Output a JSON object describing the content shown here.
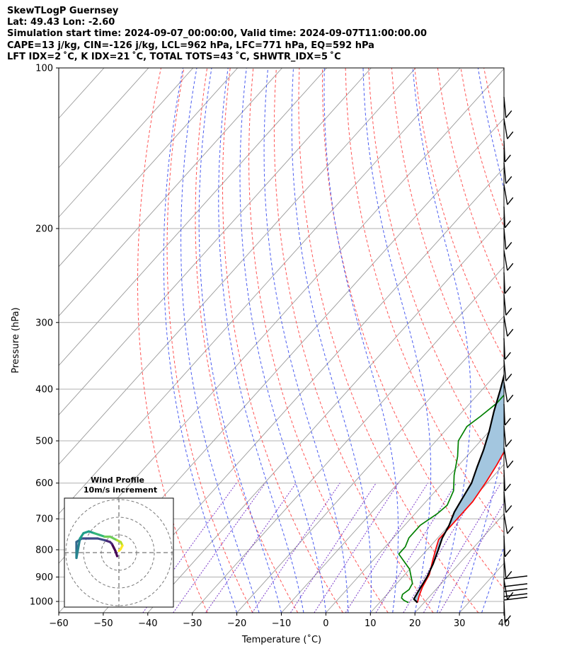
{
  "header": {
    "line1": "SkewTLogP Guernsey",
    "line2": "Lat: 49.43   Lon: -2.60",
    "line3": "Simulation start time: 2024-09-07_00:00:00, Valid time: 2024-09-07T11:00:00.00",
    "line4": "CAPE=13 j/kg, CIN=-126 j/kg, LCL=962 hPa, LFC=771 hPa, EQ=592 hPa",
    "line5": "LFT IDX=2 ˚C, K IDX=21 ˚C, TOTAL TOTS=43 ˚C, SHWTR_IDX=5 ˚C"
  },
  "colors": {
    "temperature": "#ff0000",
    "dewpoint": "#008000",
    "parcel": "#000000",
    "cape_fill": "#a3c6df",
    "dry_adiabats": "#ff5555",
    "moist_adiabats": "#4a5cf0",
    "mixing_ratio": "#7a38c8",
    "isotherms": "#9a9a9a",
    "grid": "#b0b0b0"
  },
  "chart_data": {
    "type": "line",
    "xlabel": "Temperature (˚C)",
    "ylabel": "Pressure (hPa)",
    "xlim": [
      -60,
      40
    ],
    "ylim": [
      1050,
      100
    ],
    "y_scale": "log",
    "x_ticks": [
      "−60",
      "−50",
      "−40",
      "−30",
      "−20",
      "−10",
      "0",
      "10",
      "20",
      "30",
      "40"
    ],
    "y_ticks": [
      100,
      200,
      300,
      400,
      500,
      600,
      700,
      800,
      900,
      1000
    ],
    "grid": true,
    "series": [
      {
        "key": "temperature",
        "points": [
          [
            18.5,
            1005
          ],
          [
            17.5,
            975
          ],
          [
            16.5,
            940
          ],
          [
            16,
            915
          ],
          [
            15.5,
            890
          ],
          [
            13.5,
            840
          ],
          [
            11.5,
            790
          ],
          [
            10.5,
            765
          ],
          [
            10.5,
            740
          ],
          [
            10.5,
            710
          ],
          [
            10.5,
            650
          ],
          [
            9.5,
            595
          ],
          [
            8.5,
            555
          ],
          [
            7,
            510
          ],
          [
            4.5,
            460
          ],
          [
            2,
            420
          ],
          [
            -0.5,
            380
          ],
          [
            -3,
            345
          ],
          [
            -5,
            315
          ],
          [
            -9,
            280
          ],
          [
            -9.5,
            270
          ],
          [
            -7,
            255
          ],
          [
            -4.5,
            240
          ],
          [
            -2,
            225
          ],
          [
            0,
            210
          ],
          [
            2.5,
            195
          ],
          [
            4.5,
            180
          ],
          [
            6.5,
            165
          ],
          [
            7.5,
            155
          ],
          [
            7.5,
            145
          ],
          [
            8.2,
            135
          ],
          [
            9,
            128
          ],
          [
            11,
            121
          ],
          [
            14.5,
            114
          ],
          [
            16,
            109
          ],
          [
            17.5,
            104
          ],
          [
            18,
            100
          ]
        ]
      },
      {
        "key": "dewpoint",
        "points": [
          [
            16.5,
            1005
          ],
          [
            15,
            995
          ],
          [
            14,
            985
          ],
          [
            13.5,
            970
          ],
          [
            14,
            950
          ],
          [
            13.5,
            925
          ],
          [
            10,
            870
          ],
          [
            4.5,
            815
          ],
          [
            4.5,
            790
          ],
          [
            3.5,
            760
          ],
          [
            3.5,
            720
          ],
          [
            5,
            685
          ],
          [
            5.5,
            660
          ],
          [
            4,
            620
          ],
          [
            1,
            580
          ],
          [
            -2,
            535
          ],
          [
            -5,
            500
          ],
          [
            -6,
            470
          ],
          [
            -5,
            450
          ],
          [
            -4,
            425
          ],
          [
            -4,
            395
          ],
          [
            -4.5,
            370
          ],
          [
            -5.5,
            340
          ],
          [
            -7,
            315
          ],
          [
            -9,
            290
          ],
          [
            -10,
            275
          ],
          [
            -10.5,
            258
          ],
          [
            -13,
            245
          ],
          [
            -16,
            238
          ],
          [
            -20,
            225
          ],
          [
            -23,
            215
          ],
          [
            -25.5,
            208
          ],
          [
            -25,
            195
          ],
          [
            -24,
            185
          ],
          [
            -24,
            175
          ],
          [
            -23.5,
            165
          ],
          [
            -20,
            152
          ],
          [
            -16,
            140
          ],
          [
            -12,
            128
          ],
          [
            -9,
            118
          ],
          [
            -7,
            108
          ],
          [
            -6,
            100
          ]
        ]
      },
      {
        "key": "parcel",
        "points": [
          [
            18.5,
            1005
          ],
          [
            17,
            990
          ],
          [
            16.5,
            962
          ],
          [
            15.5,
            900
          ],
          [
            14.2,
            850
          ],
          [
            12.5,
            800
          ],
          [
            11,
            760
          ],
          [
            10,
            720
          ],
          [
            8.5,
            680
          ],
          [
            7.5,
            640
          ],
          [
            6.5,
            600
          ],
          [
            4.5,
            560
          ],
          [
            2.5,
            520
          ],
          [
            0,
            480
          ],
          [
            -3,
            440
          ],
          [
            -6,
            400
          ],
          [
            -9.5,
            360
          ],
          [
            -13,
            320
          ],
          [
            -17,
            290
          ],
          [
            -19,
            265
          ],
          [
            -22,
            240
          ],
          [
            -25,
            218
          ],
          [
            -28,
            200
          ],
          [
            -32,
            180
          ],
          [
            -35,
            165
          ],
          [
            -39,
            148
          ],
          [
            -43,
            132
          ],
          [
            -46,
            118
          ],
          [
            -49,
            108
          ],
          [
            -50,
            100
          ]
        ]
      }
    ],
    "wind_barbs_count": 24,
    "inset": {
      "title": "Wind Profile",
      "subtitle": "10m/s increment",
      "type": "hodograph",
      "points": [
        [
          -1,
          -2
        ],
        [
          -2,
          1
        ],
        [
          -3,
          3
        ],
        [
          -4,
          5
        ],
        [
          -5,
          6
        ],
        [
          -8,
          7
        ],
        [
          -12,
          8
        ],
        [
          -17,
          8
        ],
        [
          -21,
          8
        ],
        [
          -24,
          6
        ],
        [
          -24,
          1
        ],
        [
          -24,
          -3
        ],
        [
          -22,
          8
        ],
        [
          -20,
          11
        ],
        [
          -17,
          12
        ],
        [
          -14,
          11
        ],
        [
          -11,
          10
        ],
        [
          -8,
          9
        ],
        [
          -5,
          9
        ],
        [
          -3,
          8
        ],
        [
          -1,
          7
        ],
        [
          1,
          6
        ],
        [
          2,
          4
        ],
        [
          1,
          2
        ],
        [
          0,
          1
        ]
      ],
      "rings": [
        10,
        20,
        30
      ]
    }
  }
}
